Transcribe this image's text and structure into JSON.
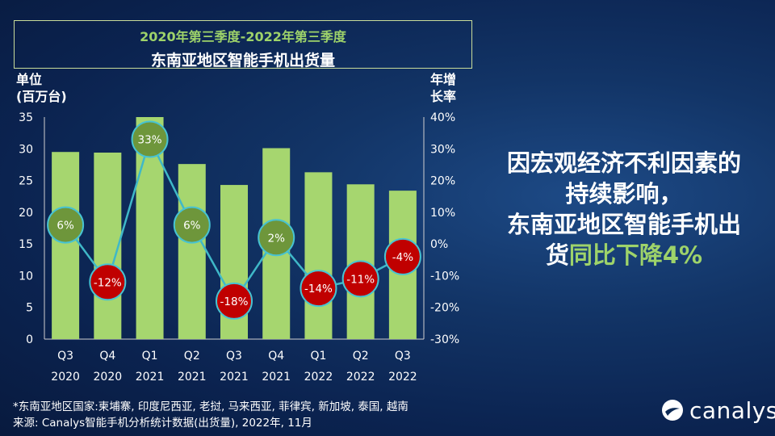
{
  "title_line1": "2020年第三季度-2022年第三季度",
  "title_line2": "东南亚地区智能手机出货量",
  "left_unit_line1": "单位",
  "left_unit_line2": "(百万台)",
  "right_unit_line1": "年增",
  "right_unit_line2": "长率",
  "callout": {
    "line1": "因宏观经济不利因素的",
    "line2": "持续影响，",
    "line3": "东南亚地区智能手机出",
    "line4_prefix": "货",
    "line4_highlight": "同比下降4%"
  },
  "footnote_line1": "*东南亚地区国家:柬埔寨, 印度尼西亚, 老挝, 马来西亚, 菲律宾, 新加坡, 泰国, 越南",
  "footnote_line2": "来源: Canalys智能手机分析统计数据(出货量), 2022年, 11月",
  "brand_name": "canalys",
  "colors": {
    "bar": "#a6d66f",
    "line": "#3fb8c8",
    "positive_marker": "#6e963b",
    "negative_marker": "#c00000",
    "marker_border": "#47c3d2",
    "highlight_text": "#9ed36a"
  },
  "chart_data": {
    "type": "bar",
    "categories": [
      [
        "Q3",
        "2020"
      ],
      [
        "Q4",
        "2020"
      ],
      [
        "Q1",
        "2021"
      ],
      [
        "Q2",
        "2021"
      ],
      [
        "Q3",
        "2021"
      ],
      [
        "Q4",
        "2021"
      ],
      [
        "Q1",
        "2022"
      ],
      [
        "Q2",
        "2022"
      ],
      [
        "Q3",
        "2022"
      ]
    ],
    "values": [
      29.5,
      29.4,
      35.0,
      27.6,
      24.3,
      30.1,
      26.3,
      24.4,
      23.4
    ],
    "growth": [
      6,
      -12,
      33,
      6,
      -18,
      2,
      -14,
      -11,
      -4
    ],
    "growth_labels": [
      "6%",
      "-12%",
      "33%",
      "6%",
      "-18%",
      "2%",
      "-14%",
      "-11%",
      "-4%"
    ],
    "ylim": [
      0,
      35
    ],
    "yticks": [
      0,
      5,
      10,
      15,
      20,
      25,
      30,
      35
    ],
    "y2lim": [
      -30,
      40
    ],
    "y2ticks": [
      -30,
      -20,
      -10,
      0,
      10,
      20,
      30,
      40
    ],
    "y2tick_labels": [
      "-30%",
      "-20%",
      "-10%",
      "0%",
      "10%",
      "20%",
      "30%",
      "40%"
    ],
    "grid": false
  }
}
